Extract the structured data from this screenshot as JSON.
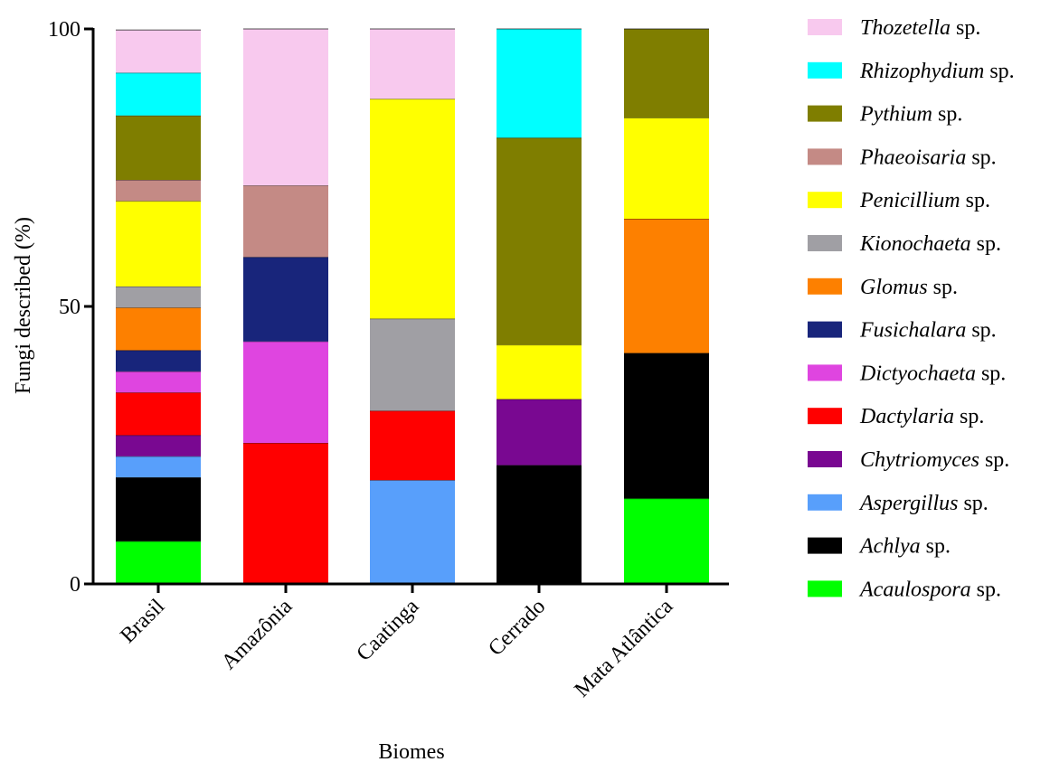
{
  "chart_data": {
    "type": "bar",
    "stacked": true,
    "xlabel": "Biomes",
    "ylabel": "Fungi described (%)",
    "ylim": [
      0,
      100
    ],
    "yticks": [
      "0",
      "50",
      "100"
    ],
    "categories": [
      "Brasil",
      "Amazônia",
      "Caatinga",
      "Cerrado",
      "Mata Atlântica"
    ],
    "legend_position": "right",
    "series": [
      {
        "name": "Acaulospora",
        "suffix": " sp.",
        "color": "#00ff00",
        "values": [
          7.7,
          0,
          0,
          0,
          15.4
        ]
      },
      {
        "name": "Achlya",
        "suffix": " sp.",
        "color": "#000000",
        "values": [
          11.5,
          0,
          0,
          21.4,
          26.2
        ]
      },
      {
        "name": "Aspergillus",
        "suffix": " sp.",
        "color": "#589ffb",
        "values": [
          3.8,
          0,
          18.7,
          0,
          0
        ]
      },
      {
        "name": "Chytriomyces",
        "suffix": " sp.",
        "color": "#790891",
        "values": [
          3.8,
          0,
          0,
          11.9,
          0
        ]
      },
      {
        "name": "Dactylaria",
        "suffix": " sp.",
        "color": "#ff0000",
        "values": [
          7.7,
          25.4,
          12.5,
          0,
          0
        ]
      },
      {
        "name": "Dictyochaeta",
        "suffix": " sp.",
        "color": "#df45e0",
        "values": [
          3.8,
          18.3,
          0,
          0,
          0
        ]
      },
      {
        "name": "Fusichalara",
        "suffix": " sp.",
        "color": "#18257b",
        "values": [
          3.8,
          15.2,
          0,
          0,
          0
        ]
      },
      {
        "name": "Glomus",
        "suffix": " sp.",
        "color": "#fd8000",
        "values": [
          7.7,
          0,
          0,
          0,
          24.2
        ]
      },
      {
        "name": "Kionochaeta",
        "suffix": " sp.",
        "color": "#a09fa4",
        "values": [
          3.8,
          0,
          16.6,
          0,
          0
        ]
      },
      {
        "name": "Penicillium",
        "suffix": " sp.",
        "color": "#ffff00",
        "values": [
          15.4,
          0,
          39.6,
          9.8,
          18.2
        ]
      },
      {
        "name": "Phaeoisaria",
        "suffix": " sp.",
        "color": "#c48a85",
        "values": [
          3.8,
          12.9,
          0,
          0,
          0
        ]
      },
      {
        "name": "Pythium",
        "suffix": " sp.",
        "color": "#7f7e00",
        "values": [
          11.6,
          0,
          0,
          37.3,
          16.0
        ]
      },
      {
        "name": "Rhizophydium",
        "suffix": " sp.",
        "color": "#00ffff",
        "values": [
          7.7,
          0,
          0,
          19.6,
          0
        ]
      },
      {
        "name": "Thozetella",
        "suffix": " sp.",
        "color": "#f8c9ee",
        "values": [
          7.7,
          28.2,
          12.6,
          0,
          0
        ]
      }
    ]
  }
}
